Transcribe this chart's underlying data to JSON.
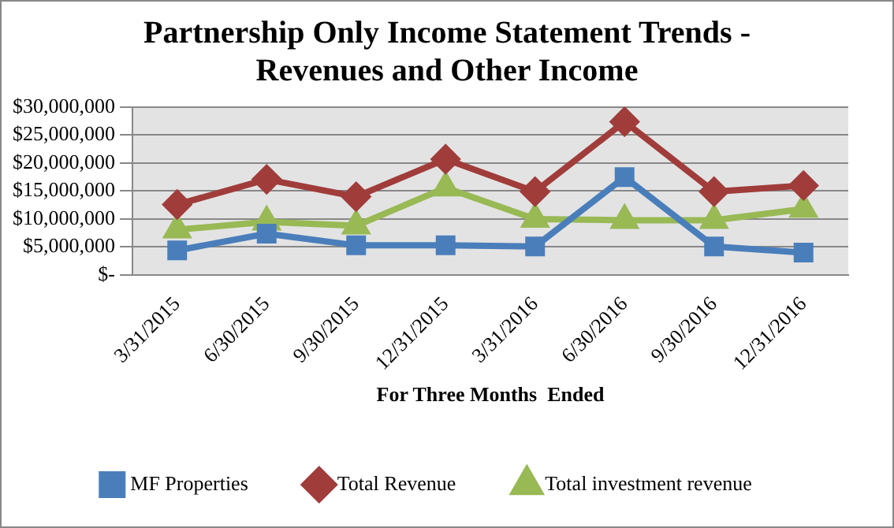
{
  "chart_data": {
    "type": "line",
    "title": "Partnership Only Income Statement Trends - Revenues and Other Income",
    "xlabel": "For Three Months  Ended",
    "categories": [
      "3/31/2015",
      "6/30/2015",
      "9/30/2015",
      "12/31/2015",
      "3/31/2016",
      "6/30/2016",
      "9/30/2016",
      "12/31/2016"
    ],
    "series": [
      {
        "name": "MF Properties",
        "color": "#4a7ebb",
        "marker": "square",
        "values": [
          4400000,
          7400000,
          5300000,
          5300000,
          5100000,
          17500000,
          5100000,
          4000000
        ]
      },
      {
        "name": "Total Revenue",
        "color": "#a03c3a",
        "marker": "diamond",
        "values": [
          12600000,
          17100000,
          14000000,
          20700000,
          14900000,
          27400000,
          14900000,
          16000000
        ]
      },
      {
        "name": "Total investment revenue",
        "color": "#98b954",
        "marker": "triangle",
        "values": [
          8100000,
          9500000,
          8800000,
          15600000,
          10000000,
          9800000,
          9800000,
          11800000
        ]
      }
    ],
    "ylim": [
      0,
      30000000
    ],
    "yticks": [
      {
        "value": 0,
        "label": "$-"
      },
      {
        "value": 5000000,
        "label": "$5,000,000"
      },
      {
        "value": 10000000,
        "label": "$10,000,000"
      },
      {
        "value": 15000000,
        "label": "$15,000,000"
      },
      {
        "value": 20000000,
        "label": "$20,000,000"
      },
      {
        "value": 25000000,
        "label": "$25,000,000"
      },
      {
        "value": 30000000,
        "label": "$30,000,000"
      }
    ],
    "grid": "y",
    "legend": "bottom",
    "line_style": "solid"
  }
}
